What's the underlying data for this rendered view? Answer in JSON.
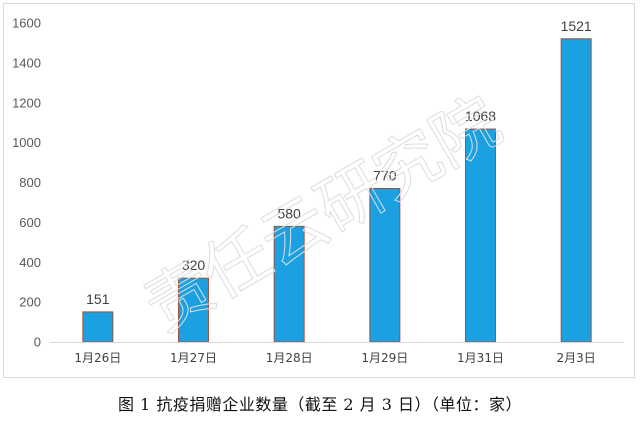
{
  "chart_data": {
    "type": "bar",
    "categories": [
      "1月26日",
      "1月27日",
      "1月28日",
      "1月29日",
      "1月31日",
      "2月3日"
    ],
    "values": [
      151,
      320,
      580,
      770,
      1068,
      1521
    ],
    "ylim": [
      0,
      1600
    ],
    "yticks": [
      0,
      200,
      400,
      600,
      800,
      1000,
      1200,
      1400,
      1600
    ],
    "grid": false,
    "data_labels": true,
    "bar_color": "#1BA1E2",
    "bar_edge_color": "#A0523D"
  },
  "caption": "图 1  抗疫捐赠企业数量（截至 2 月 3 日）（单位：家）",
  "watermark": "责任云研究院"
}
